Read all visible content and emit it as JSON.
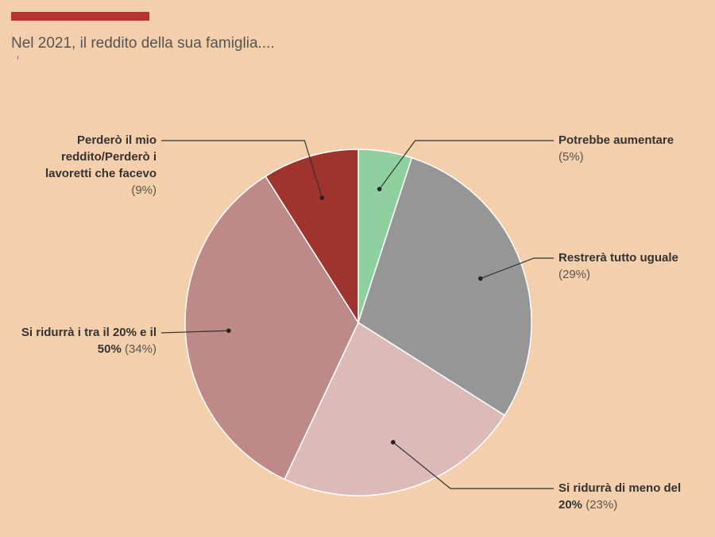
{
  "header": {
    "title": "Nel 2021, il reddito della sua famiglia...."
  },
  "colors": {
    "background": "#f3d0ab",
    "accent": "#b8312d"
  },
  "chart_data": {
    "type": "pie",
    "title": "Nel 2021, il reddito della sua famiglia....",
    "start_angle_deg": 0,
    "direction": "clockwise",
    "slices": [
      {
        "name_lines": [
          "Potrebbe aumentare"
        ],
        "pct_text": "(5%)",
        "value": 5,
        "color": "#8fd19e"
      },
      {
        "name_lines": [
          "Restrerà tutto uguale"
        ],
        "pct_text": "(29%)",
        "value": 29,
        "color": "#969696"
      },
      {
        "name_lines": [
          "Si ridurrà di meno del",
          "20%"
        ],
        "pct_text": "(23%)",
        "value": 23,
        "color": "#dcbab7"
      },
      {
        "name_lines": [
          "Si ridurrà i tra il 20% e il",
          "50%"
        ],
        "pct_text": "(34%)",
        "value": 34,
        "color": "#be8a87"
      },
      {
        "name_lines": [
          "Perderò il mio",
          "reddito/Perderò i",
          "lavoretti che facevo"
        ],
        "pct_text": "(9%)",
        "value": 9,
        "color": "#a0332d"
      }
    ]
  }
}
